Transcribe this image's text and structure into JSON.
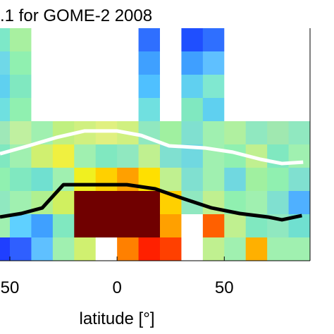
{
  "chart_data": {
    "type": "heatmap",
    "title": ".1 for GOME-2 2008",
    "x_label": "latitude [°]",
    "xlim": [
      -54.6,
      90
    ],
    "ylim": [
      0,
      10
    ],
    "xticks": [
      {
        "value": -50,
        "label": "50"
      },
      0,
      50
    ],
    "xbins": [
      -60,
      -50,
      -40,
      -30,
      -20,
      -10,
      0,
      10,
      20,
      30,
      40,
      50,
      60,
      70,
      80,
      90
    ],
    "ybins": [
      10,
      9,
      8,
      7,
      6,
      5,
      4,
      3,
      2,
      1,
      0
    ],
    "cells": [
      [
        "#7de8c8",
        "#a8f0a0",
        "#ffffff",
        "#ffffff",
        "#ffffff",
        "#ffffff",
        "#ffffff",
        "#2f6fff",
        "#ffffff",
        "#1f4fff",
        "#2f6fff",
        "#ffffff",
        "#ffffff",
        "#ffffff",
        "#ffffff"
      ],
      [
        "#6fd8e8",
        "#90f0b0",
        "#ffffff",
        "#ffffff",
        "#ffffff",
        "#ffffff",
        "#ffffff",
        "#3fa0ff",
        "#ffffff",
        "#3f9fff",
        "#5fc0ff",
        "#ffffff",
        "#ffffff",
        "#ffffff",
        "#ffffff"
      ],
      [
        "#5fd0f0",
        "#80e8c0",
        "#ffffff",
        "#ffffff",
        "#ffffff",
        "#ffffff",
        "#ffffff",
        "#4fc0ff",
        "#ffffff",
        "#60d0f0",
        "#80e8d0",
        "#ffffff",
        "#ffffff",
        "#ffffff",
        "#ffffff"
      ],
      [
        "#6fe0e0",
        "#90f0b0",
        "#ffffff",
        "#ffffff",
        "#ffffff",
        "#ffffff",
        "#ffffff",
        "#70e0e0",
        "#ffffff",
        "#80e8c0",
        "#5fd0f0",
        "#ffffff",
        "#ffffff",
        "#ffffff",
        "#ffffff"
      ],
      [
        "#9fe8b8",
        "#c0f0a0",
        "#a0f0b0",
        "#c0f080",
        "#d0f080",
        "#e0f080",
        "#d0f080",
        "#90e8c0",
        "#a0f0a0",
        "#80e0d0",
        "#a0f0b0",
        "#b0f0a0",
        "#90e8c0",
        "#a0e8b0",
        "#90e8c0"
      ],
      [
        "#80e8c0",
        "#a0f0b0",
        "#d0f070",
        "#f0f040",
        "#a0f0b0",
        "#80e8c0",
        "#90e8c0",
        "#c0f090",
        "#80e0d0",
        "#70d8e0",
        "#a0f0b0",
        "#90f0b0",
        "#c0f090",
        "#80e8c0",
        "#a0f0b0"
      ],
      [
        "#90f0b0",
        "#80e8c0",
        "#70e0d0",
        "#a0f0b0",
        "#f0f020",
        "#ffd000",
        "#ffa000",
        "#ffe000",
        "#c0f090",
        "#80e0d0",
        "#a0f0b0",
        "#70d8e0",
        "#a0f0a0",
        "#90f0b0",
        "#80e0d0"
      ],
      [
        "#90e8c0",
        "#a0f0b0",
        "#b0f090",
        "#d0f060",
        "#700000",
        "#700000",
        "#700000",
        "#700000",
        "#ffd000",
        "#90e8c0",
        "#c0f090",
        "#90f0b0",
        "#a0f0b0",
        "#80e0d0",
        "#4fb0ff"
      ],
      [
        "#a0f0b0",
        "#5fd0ff",
        "#3fa0ff",
        "#80e8c0",
        "#700000",
        "#700000",
        "#700000",
        "#700000",
        "#ffa000",
        "#ffffff",
        "#ff6000",
        "#c0f090",
        "#80e8c0",
        "#90e8c0",
        "#70e0d0"
      ],
      [
        "#1f3fff",
        "#2f5fff",
        "#5fc0ff",
        "#a0f0b0",
        "#d0f070",
        "#ffffff",
        "#ff8000",
        "#ff2000",
        "#ff4000",
        "#ffffff",
        "#c0f090",
        "#a0f0b0",
        "#ffb000",
        "#a0f0b0",
        "#a0f0b0"
      ]
    ],
    "series": [
      {
        "color": "#ffffff",
        "x": [
          -54.6,
          -41.4,
          -28.3,
          -15.1,
          0,
          11.2,
          24.3,
          40.8,
          53.9,
          67,
          76.9,
          86.8
        ],
        "values": [
          4.6,
          4.94,
          5.3,
          5.58,
          5.58,
          5.39,
          4.94,
          4.85,
          4.67,
          4.36,
          4.18,
          4.24
        ]
      },
      {
        "color": "#000000",
        "x": [
          -54.6,
          -44.7,
          -34.9,
          -25,
          -11.8,
          4.6,
          17.8,
          30.9,
          44.1,
          57.2,
          70.4,
          76.9,
          86.2
        ],
        "values": [
          1.88,
          2.03,
          2.27,
          3.27,
          3.27,
          3.27,
          3.09,
          2.67,
          2.27,
          2.03,
          1.88,
          1.76,
          1.94
        ]
      }
    ]
  }
}
